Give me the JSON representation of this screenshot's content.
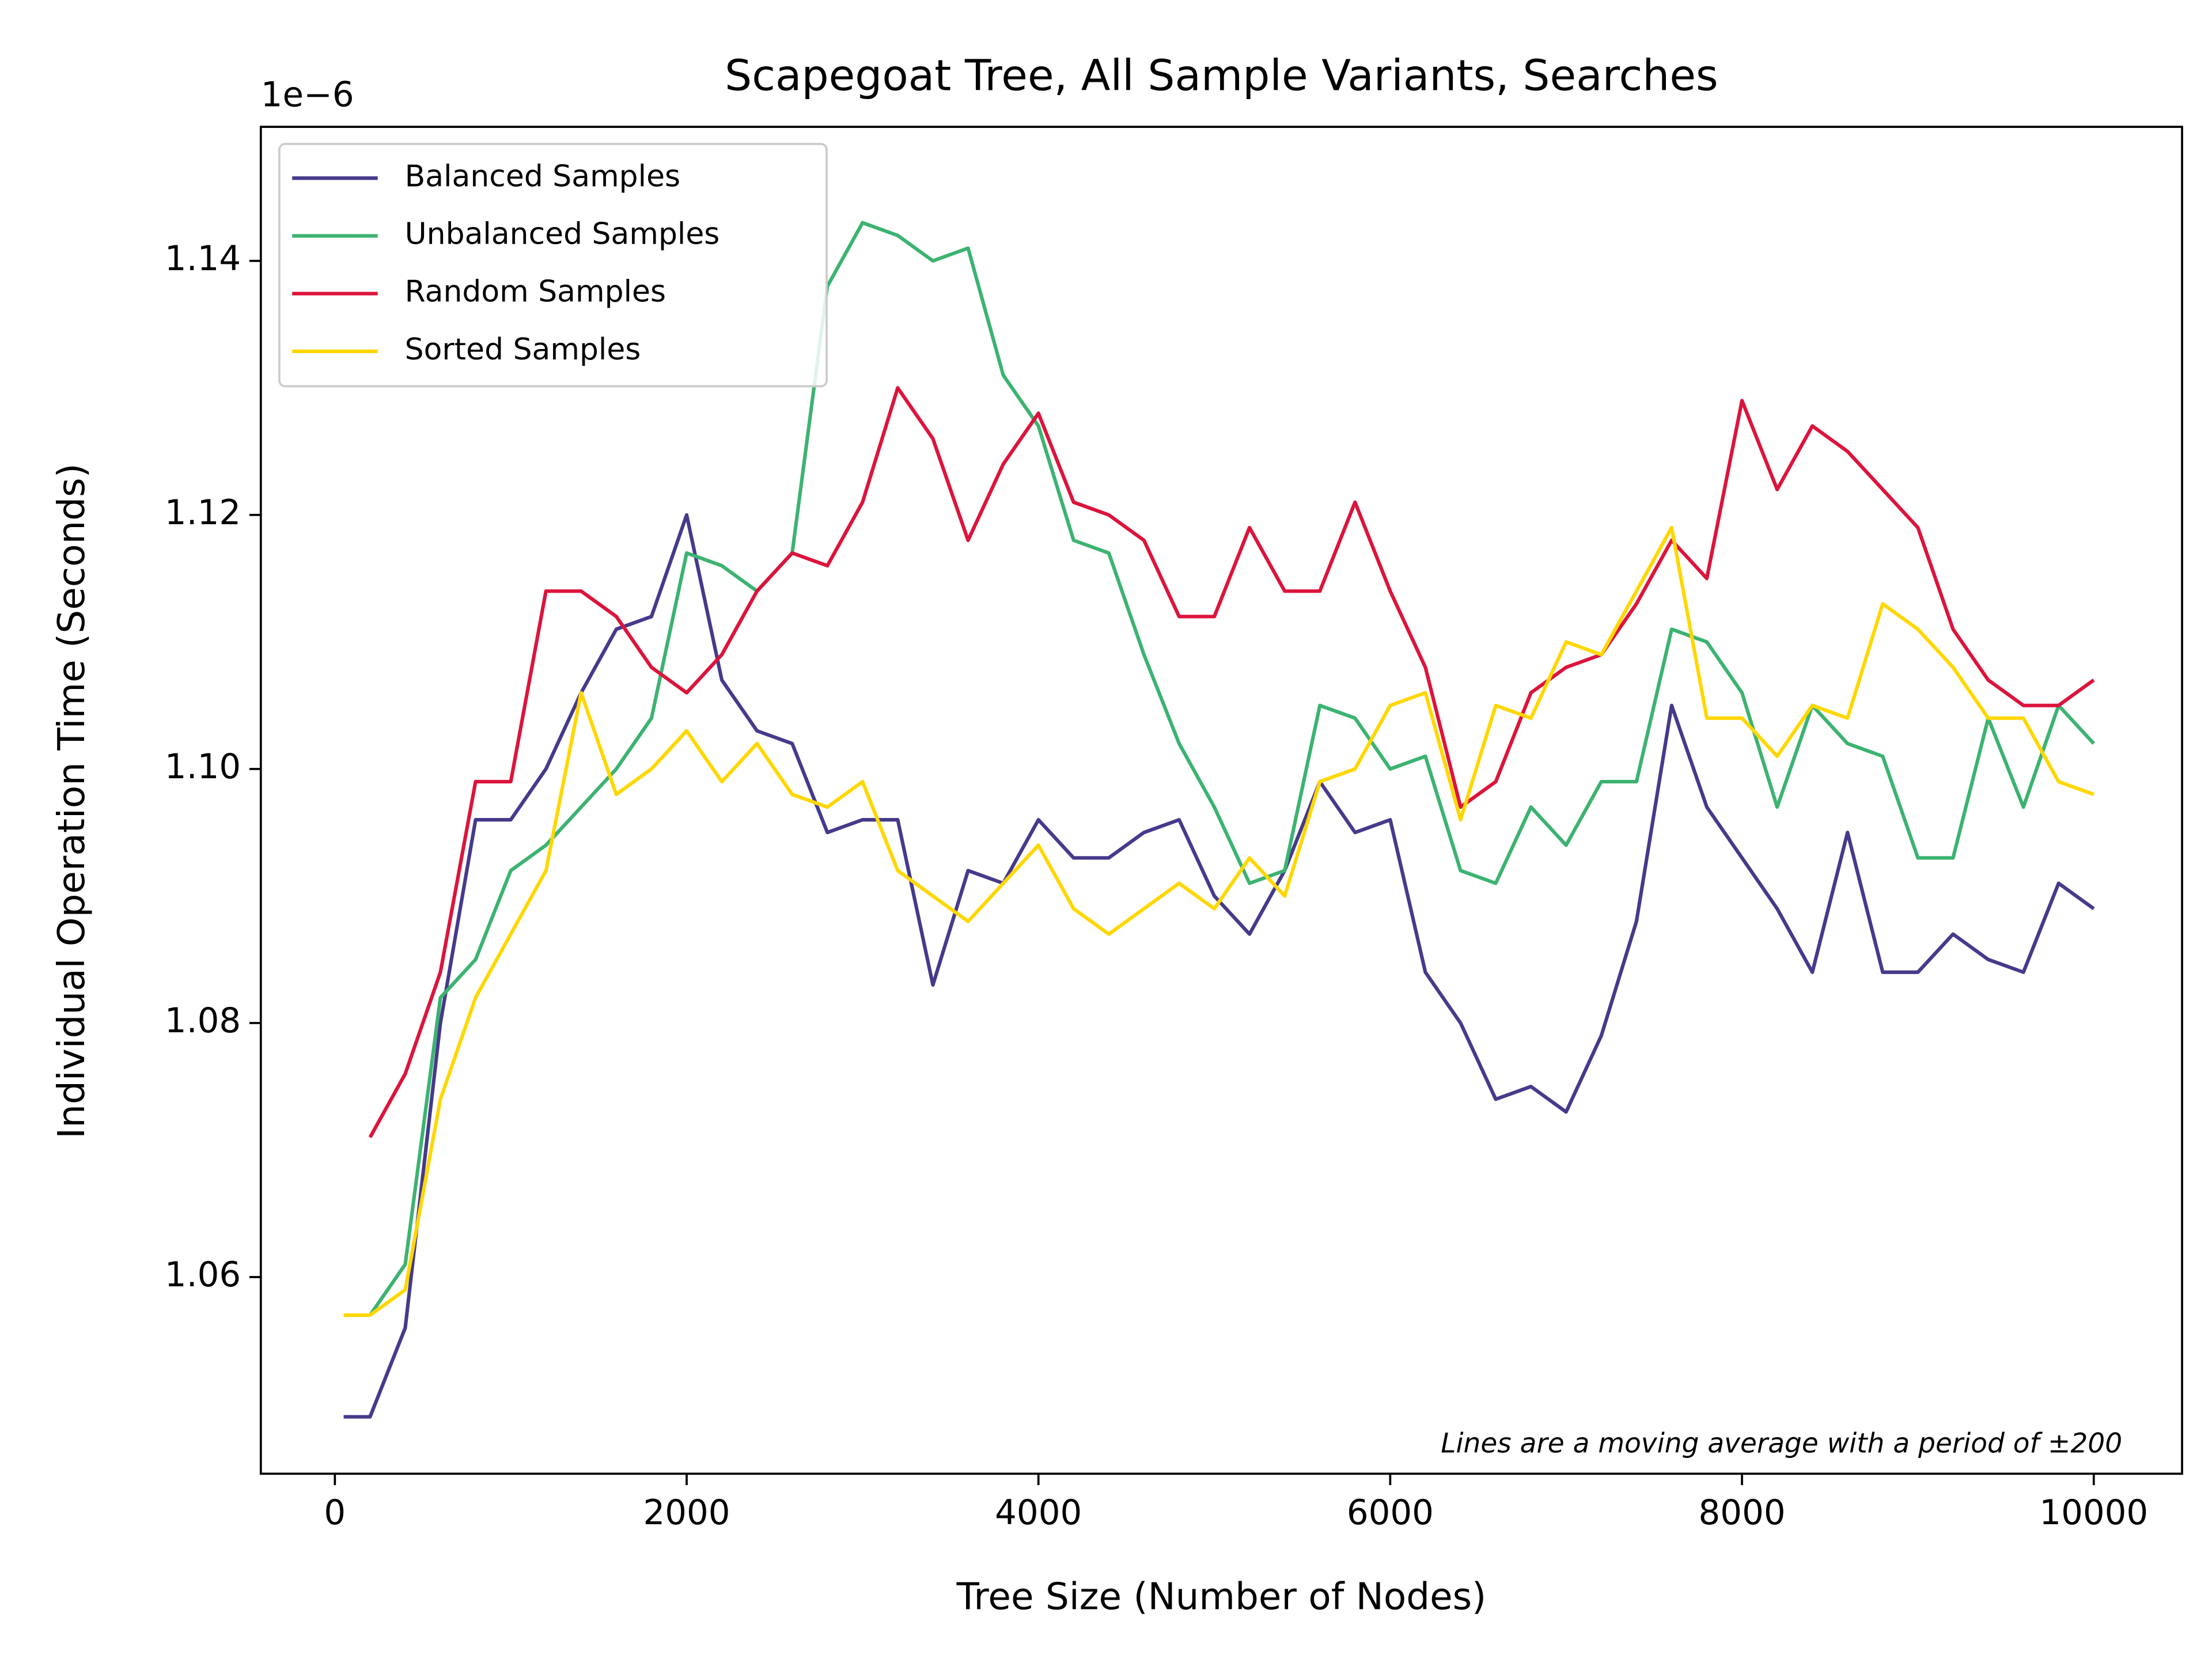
{
  "chart_data": {
    "type": "line",
    "title": "Scapegoat Tree, All Sample Variants, Searches",
    "xlabel": "Tree Size (Number of Nodes)",
    "ylabel": "Individual Operation Time (Seconds)",
    "y_offset_label": "1e−6",
    "annotation": "Lines are a moving average with a period of ±200",
    "grid": false,
    "legend": "upper left",
    "xlim": [
      -421,
      10502
    ],
    "ylim": [
      1.04452,
      1.15055
    ],
    "xticks": [
      0,
      2000,
      4000,
      6000,
      8000,
      10000
    ],
    "yticks": [
      1.06,
      1.08,
      {
        "value": 1.1,
        "label": "1.10"
      },
      1.12,
      1.14
    ],
    "x": [
      50,
      200,
      400,
      600,
      800,
      1000,
      1200,
      1400,
      1600,
      1800,
      2000,
      2200,
      2400,
      2600,
      2800,
      3000,
      3200,
      3400,
      3600,
      3800,
      4000,
      4200,
      4400,
      4600,
      4800,
      5000,
      5200,
      5400,
      5600,
      5800,
      6000,
      6200,
      6400,
      6600,
      6800,
      7000,
      7200,
      7400,
      7600,
      7800,
      8000,
      8200,
      8400,
      8600,
      8800,
      9000,
      9200,
      9400,
      9600,
      9800,
      10000
    ],
    "series": [
      {
        "name": "Balanced Samples",
        "color": "#453a8b",
        "values": [
          1.049,
          1.049,
          1.056,
          1.08,
          1.096,
          1.096,
          1.1,
          1.106,
          1.111,
          1.112,
          1.12,
          1.107,
          1.103,
          1.102,
          1.095,
          1.096,
          1.096,
          1.083,
          1.092,
          1.091,
          1.096,
          1.093,
          1.093,
          1.095,
          1.096,
          1.09,
          1.087,
          1.092,
          1.099,
          1.095,
          1.096,
          1.084,
          1.08,
          1.074,
          1.075,
          1.073,
          1.079,
          1.088,
          1.105,
          1.097,
          1.093,
          1.089,
          1.084,
          1.095,
          1.084,
          1.084,
          1.087,
          1.085,
          1.084,
          1.091,
          1.089
        ]
      },
      {
        "name": "Unbalanced Samples",
        "color": "#3cb371",
        "values": [
          null,
          1.057,
          1.061,
          1.082,
          1.085,
          1.092,
          1.094,
          1.097,
          1.1,
          1.104,
          1.117,
          1.116,
          1.114,
          1.117,
          1.138,
          1.143,
          1.142,
          1.14,
          1.141,
          1.131,
          1.127,
          1.118,
          1.117,
          1.109,
          1.102,
          1.097,
          1.091,
          1.092,
          1.105,
          1.104,
          1.1,
          1.101,
          1.092,
          1.091,
          1.097,
          1.094,
          1.099,
          1.099,
          1.111,
          1.11,
          1.106,
          1.097,
          1.105,
          1.102,
          1.101,
          1.093,
          1.093,
          1.104,
          1.097,
          1.105,
          1.102
        ]
      },
      {
        "name": "Random Samples",
        "color": "#dc143c",
        "values": [
          null,
          1.071,
          1.076,
          1.084,
          1.099,
          1.099,
          1.114,
          1.114,
          1.112,
          1.108,
          1.106,
          1.109,
          1.114,
          1.117,
          1.116,
          1.121,
          1.13,
          1.126,
          1.118,
          1.124,
          1.128,
          1.121,
          1.12,
          1.118,
          1.112,
          1.112,
          1.119,
          1.114,
          1.114,
          1.121,
          1.114,
          1.108,
          1.097,
          1.099,
          1.106,
          1.108,
          1.109,
          1.113,
          1.118,
          1.115,
          1.129,
          1.122,
          1.127,
          1.125,
          1.122,
          1.119,
          1.111,
          1.107,
          1.105,
          1.105,
          1.107
        ]
      },
      {
        "name": "Sorted Samples",
        "color": "#ffd700",
        "values": [
          1.057,
          1.057,
          1.059,
          1.074,
          1.082,
          1.087,
          1.092,
          1.106,
          1.098,
          1.1,
          1.103,
          1.099,
          1.102,
          1.098,
          1.097,
          1.099,
          1.092,
          1.09,
          1.088,
          1.091,
          1.094,
          1.089,
          1.087,
          1.089,
          1.091,
          1.089,
          1.093,
          1.09,
          1.099,
          1.1,
          1.105,
          1.106,
          1.096,
          1.105,
          1.104,
          1.11,
          1.109,
          1.114,
          1.119,
          1.104,
          1.104,
          1.101,
          1.105,
          1.104,
          1.113,
          1.111,
          1.108,
          1.104,
          1.104,
          1.099,
          1.098
        ]
      }
    ]
  }
}
